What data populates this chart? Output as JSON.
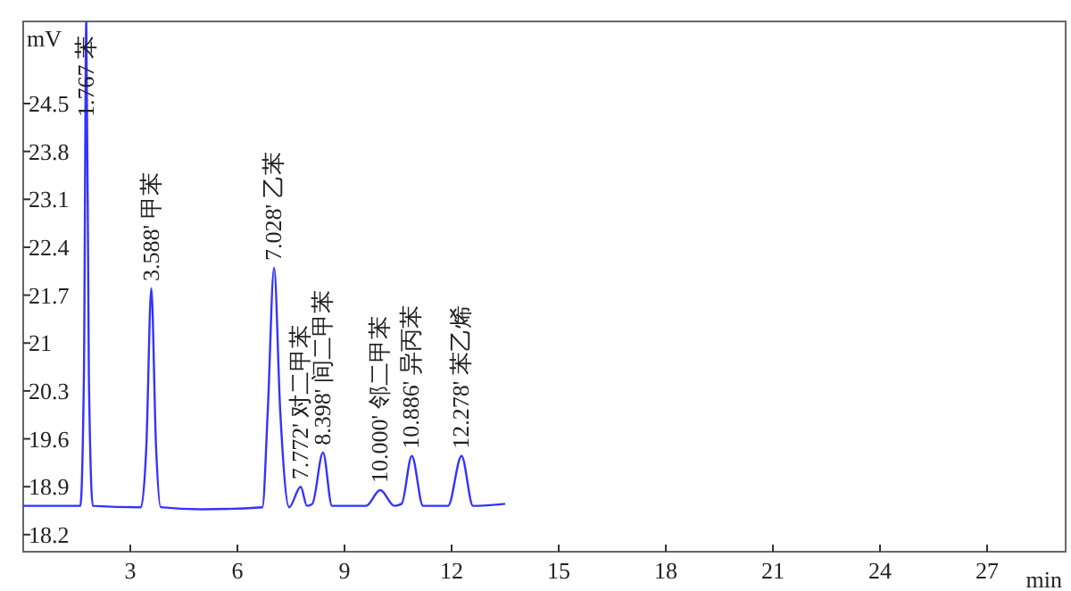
{
  "chart_data": {
    "type": "line",
    "ylabel": "mV",
    "xlabel": "min",
    "x": [
      0,
      1.6,
      1.7,
      1.767,
      1.84,
      1.95,
      3.3,
      3.45,
      3.588,
      3.72,
      3.85,
      5,
      6.7,
      6.85,
      7.028,
      7.2,
      7.45,
      7.772,
      7.95,
      8.1,
      8.398,
      8.65,
      9.6,
      10.0,
      10.4,
      10.6,
      10.886,
      11.2,
      11.9,
      12.278,
      12.6,
      13.5
    ],
    "series": [
      {
        "color": "#3333ff",
        "values": [
          18.62,
          18.62,
          20.5,
          25.7,
          20.5,
          18.62,
          18.6,
          19.5,
          21.8,
          19.5,
          18.6,
          18.57,
          18.6,
          20,
          22.1,
          20,
          18.6,
          18.9,
          18.62,
          18.65,
          19.4,
          18.62,
          18.62,
          18.85,
          18.62,
          18.65,
          19.35,
          18.62,
          18.62,
          19.35,
          18.62,
          18.65
        ]
      }
    ],
    "xlim": [
      0,
      29.2
    ],
    "xticks": [
      3,
      6,
      9,
      12,
      15,
      18,
      21,
      24,
      27
    ],
    "ylim": [
      17.95,
      25.7
    ],
    "yticks": [
      18.2,
      18.9,
      19.6,
      20.3,
      21,
      21.7,
      22.4,
      23.1,
      23.8,
      24.5
    ],
    "grid": false,
    "marker": "none",
    "line_style": "solid",
    "annotations": [
      {
        "text": "1.767 苯",
        "x": 1.767,
        "y": 24.2
      },
      {
        "text": "3.588' 甲苯",
        "x": 3.588,
        "y": 21.8
      },
      {
        "text": "7.028' 乙苯",
        "x": 7.028,
        "y": 22.1
      },
      {
        "text": "7.772' 对二甲苯",
        "x": 7.772,
        "y": 18.9
      },
      {
        "text": "8.398' 间二甲苯",
        "x": 8.398,
        "y": 19.4
      },
      {
        "text": "10.000' 邻二甲苯",
        "x": 10.0,
        "y": 18.85
      },
      {
        "text": "10.886' 异丙苯",
        "x": 10.886,
        "y": 19.35
      },
      {
        "text": "12.278' 苯乙烯",
        "x": 12.278,
        "y": 19.35
      }
    ]
  }
}
